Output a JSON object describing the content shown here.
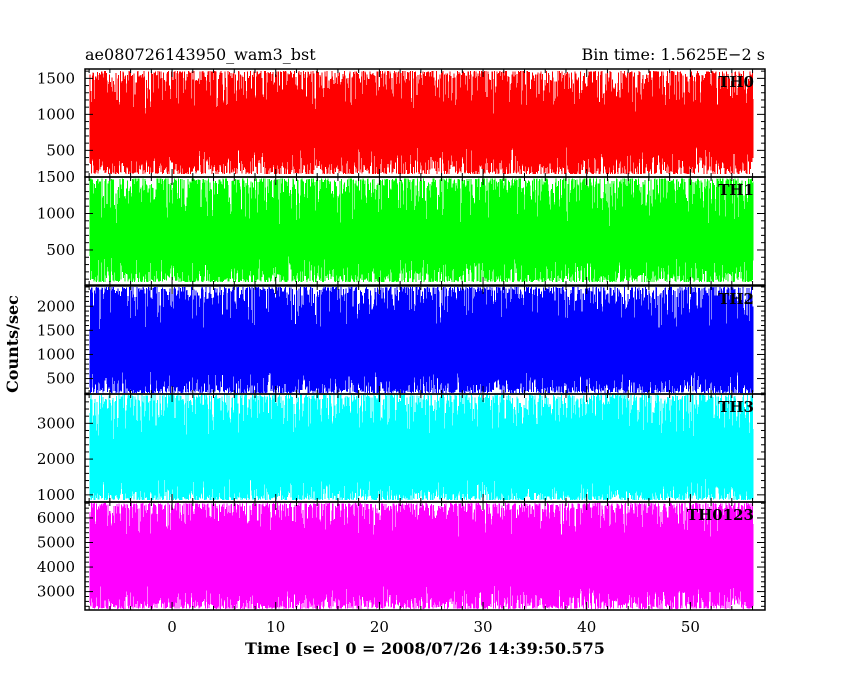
{
  "chart_data": {
    "type": "line",
    "title_left": "ae080726143950_wam3_bst",
    "title_right": "Bin time: 1.5625E−2 s",
    "xlabel": "Time [sec] 0 = 2008/07/26 14:39:50.575",
    "ylabel": "Counts/sec",
    "xlim": [
      -8.4,
      57.2
    ],
    "x_data_range": [
      -7.9,
      56.1
    ],
    "x_ticks": [
      0,
      10,
      20,
      30,
      40,
      50
    ],
    "x_tick_labels": [
      "0",
      "10",
      "20",
      "30",
      "40",
      "50"
    ],
    "grid": false,
    "panels": [
      {
        "name": "TH0",
        "color": "#ff0000",
        "ylim": [
          130,
          1630
        ],
        "y_ticks": [
          500,
          1000,
          1500
        ],
        "y_tick_labels": [
          "500",
          "1000",
          "1500"
        ],
        "band_low": [
          170,
          560
        ],
        "band_high": [
          950,
          1600
        ]
      },
      {
        "name": "TH1",
        "color": "#00ff00",
        "ylim": [
          20,
          1500
        ],
        "y_ticks": [
          500,
          1000,
          1500
        ],
        "y_tick_labels": [
          "500",
          "1000",
          "1500"
        ],
        "band_low": [
          60,
          420
        ],
        "band_high": [
          820,
          1480
        ]
      },
      {
        "name": "TH2",
        "color": "#0000ff",
        "ylim": [
          180,
          2420
        ],
        "y_ticks": [
          500,
          1000,
          1500,
          2000
        ],
        "y_tick_labels": [
          "500",
          "1000",
          "1500",
          "2000"
        ],
        "band_low": [
          200,
          650
        ],
        "band_high": [
          1500,
          2400
        ]
      },
      {
        "name": "TH3",
        "color": "#00ffff",
        "ylim": [
          800,
          3820
        ],
        "y_ticks": [
          1000,
          2000,
          3000
        ],
        "y_tick_labels": [
          "1000",
          "2000",
          "3000"
        ],
        "band_low": [
          850,
          1450
        ],
        "band_high": [
          2500,
          3800
        ]
      },
      {
        "name": "TH0123",
        "color": "#ff00ff",
        "ylim": [
          2250,
          6650
        ],
        "y_ticks": [
          3000,
          4000,
          5000,
          6000
        ],
        "y_tick_labels": [
          "3000",
          "4000",
          "5000",
          "6000"
        ],
        "band_low": [
          2300,
          3300
        ],
        "band_high": [
          5200,
          6600
        ]
      }
    ]
  }
}
